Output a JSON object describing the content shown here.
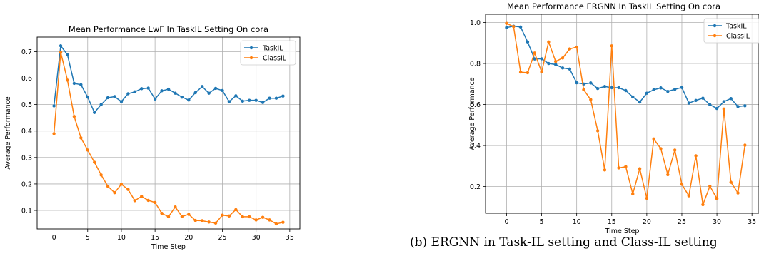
{
  "colors": {
    "taskil": "#1f77b4",
    "classil": "#ff7f0e",
    "grid": "#b0b0b0"
  },
  "chart_data": [
    {
      "type": "line",
      "title": "Mean Performance LwF In TaskIL Setting On cora",
      "xlabel": "Time Step",
      "ylabel": "Average Performance",
      "xlim": [
        -2.5,
        36.5
      ],
      "ylim": [
        0.03,
        0.755
      ],
      "xticks": [
        0,
        5,
        10,
        15,
        20,
        25,
        30,
        35
      ],
      "yticks": [
        0.1,
        0.2,
        0.3,
        0.4,
        0.5,
        0.6,
        0.7
      ],
      "grid": true,
      "legend_position": "top-right",
      "x": [
        0,
        1,
        2,
        3,
        4,
        5,
        6,
        7,
        8,
        9,
        10,
        11,
        12,
        13,
        14,
        15,
        16,
        17,
        18,
        19,
        20,
        21,
        22,
        23,
        24,
        25,
        26,
        27,
        28,
        29,
        30,
        31,
        32,
        33,
        34
      ],
      "series": [
        {
          "name": "TaskIL",
          "color": "#1f77b4",
          "values": [
            0.495,
            0.722,
            0.688,
            0.58,
            0.575,
            0.528,
            0.47,
            0.5,
            0.526,
            0.53,
            0.511,
            0.541,
            0.548,
            0.56,
            0.562,
            0.521,
            0.552,
            0.558,
            0.543,
            0.528,
            0.517,
            0.545,
            0.568,
            0.543,
            0.561,
            0.553,
            0.511,
            0.533,
            0.513,
            0.516,
            0.516,
            0.508,
            0.524,
            0.524,
            0.532
          ]
        },
        {
          "name": "ClassIL",
          "color": "#ff7f0e",
          "values": [
            0.39,
            0.697,
            0.592,
            0.455,
            0.374,
            0.328,
            0.282,
            0.234,
            0.191,
            0.167,
            0.199,
            0.179,
            0.137,
            0.153,
            0.138,
            0.13,
            0.089,
            0.076,
            0.113,
            0.077,
            0.085,
            0.062,
            0.061,
            0.056,
            0.052,
            0.082,
            0.079,
            0.103,
            0.076,
            0.076,
            0.064,
            0.074,
            0.064,
            0.049,
            0.055
          ]
        }
      ]
    },
    {
      "type": "line",
      "title": "Mean Performance ERGNN In TaskIL Setting On cora",
      "xlabel": "Time Step",
      "ylabel": "Average Performance",
      "xlim": [
        -3,
        36
      ],
      "ylim": [
        0.07,
        1.04
      ],
      "xticks": [
        0,
        5,
        10,
        15,
        20,
        25,
        30,
        35
      ],
      "yticks": [
        0.2,
        0.4,
        0.6,
        0.8,
        1.0
      ],
      "grid": true,
      "legend_position": "top-right",
      "x": [
        0,
        1,
        2,
        3,
        4,
        5,
        6,
        7,
        8,
        9,
        10,
        11,
        12,
        13,
        14,
        15,
        16,
        17,
        18,
        19,
        20,
        21,
        22,
        23,
        24,
        25,
        26,
        27,
        28,
        29,
        30,
        31,
        32,
        33,
        34
      ],
      "series": [
        {
          "name": "TaskIL",
          "color": "#1f77b4",
          "values": [
            0.975,
            0.982,
            0.978,
            0.905,
            0.822,
            0.823,
            0.8,
            0.795,
            0.778,
            0.773,
            0.706,
            0.7,
            0.705,
            0.678,
            0.688,
            0.682,
            0.682,
            0.668,
            0.637,
            0.612,
            0.655,
            0.672,
            0.681,
            0.664,
            0.674,
            0.683,
            0.607,
            0.62,
            0.631,
            0.599,
            0.581,
            0.614,
            0.629,
            0.59,
            0.594
          ]
        },
        {
          "name": "ClassIL",
          "color": "#ff7f0e",
          "values": [
            0.996,
            0.98,
            0.758,
            0.755,
            0.851,
            0.759,
            0.905,
            0.81,
            0.827,
            0.871,
            0.88,
            0.672,
            0.624,
            0.472,
            0.281,
            0.886,
            0.291,
            0.297,
            0.164,
            0.287,
            0.143,
            0.432,
            0.385,
            0.258,
            0.378,
            0.211,
            0.155,
            0.35,
            0.112,
            0.202,
            0.141,
            0.578,
            0.221,
            0.169,
            0.402
          ]
        }
      ]
    }
  ],
  "caption": "(b) ERGNN in Task-IL setting and Class-IL setting"
}
